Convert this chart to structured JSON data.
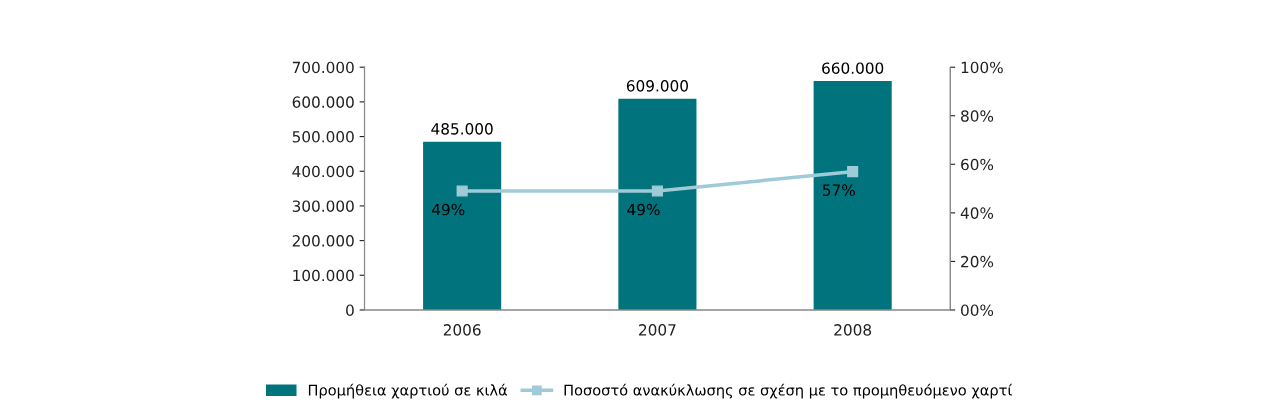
{
  "chart_data": {
    "type": "bar",
    "categories": [
      "2006",
      "2007",
      "2008"
    ],
    "series": [
      {
        "name": "Προμήθεια χαρτιού σε κιλά",
        "color": "#00737c",
        "values": [
          485000,
          609000,
          660000
        ],
        "value_labels": [
          "485.000",
          "609.000",
          "660.000"
        ]
      },
      {
        "name": "Ποσοστό ανακύκλωσης σε σχέση με το προμηθευόμενο χαρτί",
        "type": "line",
        "axis": "y2",
        "color": "#9fcbd8",
        "marker": "square",
        "values": [
          49,
          49,
          57
        ],
        "value_labels": [
          "49%",
          "49%",
          "57%"
        ]
      }
    ],
    "ylim": [
      0,
      700000
    ],
    "yticks": [
      0,
      {
        "value": 100000,
        "label": "100.000"
      },
      {
        "value": 200000,
        "label": "200.000"
      },
      {
        "value": 300000,
        "label": "300.000"
      },
      {
        "value": 400000,
        "label": "400.000"
      },
      {
        "value": 500000,
        "label": "500.000"
      },
      {
        "value": 600000,
        "label": "600.000"
      },
      {
        "value": 700000,
        "label": "700.000"
      }
    ],
    "y2lim": [
      0,
      100
    ],
    "y2ticks": [
      {
        "value": 0,
        "label": "00%"
      },
      {
        "value": 20,
        "label": "20%"
      },
      {
        "value": 40,
        "label": "40%"
      },
      {
        "value": 60,
        "label": "60%"
      },
      {
        "value": 80,
        "label": "80%"
      },
      {
        "value": 100,
        "label": "100%"
      }
    ],
    "legend": "bottom",
    "grid": false
  }
}
